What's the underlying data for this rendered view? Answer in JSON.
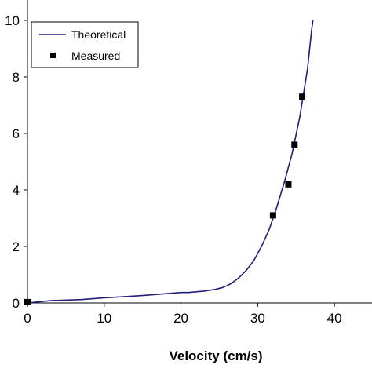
{
  "chart_data": {
    "type": "line",
    "title": "",
    "xlabel": "Velocity (cm/s)",
    "ylabel": "",
    "xlim": [
      0,
      45
    ],
    "ylim": [
      0,
      10
    ],
    "x_ticks": [
      0,
      10,
      20,
      30,
      40
    ],
    "y_ticks": [
      0,
      2,
      4,
      6,
      8,
      10
    ],
    "x_tick_labels": [
      "0",
      "10",
      "20",
      "30",
      "40"
    ],
    "y_tick_labels": [
      "0",
      "2",
      "4",
      "6",
      "8",
      "10"
    ],
    "grid": false,
    "legend_position": "top-left",
    "series": [
      {
        "name": "Theoretical",
        "kind": "line",
        "color": "#1f1f7a",
        "points": [
          [
            0,
            0
          ],
          [
            3,
            0.08
          ],
          [
            7,
            0.12
          ],
          [
            10,
            0.18
          ],
          [
            15,
            0.26
          ],
          [
            20,
            0.37
          ],
          [
            21,
            0.37
          ],
          [
            23,
            0.42
          ],
          [
            24.5,
            0.48
          ],
          [
            25.5,
            0.55
          ],
          [
            26.5,
            0.68
          ],
          [
            27.5,
            0.88
          ],
          [
            28.5,
            1.15
          ],
          [
            29.5,
            1.5
          ],
          [
            30.5,
            2.0
          ],
          [
            31.5,
            2.6
          ],
          [
            32.5,
            3.4
          ],
          [
            33.5,
            4.3
          ],
          [
            34.5,
            5.3
          ],
          [
            35.5,
            6.6
          ],
          [
            36.5,
            8.3
          ],
          [
            37.0,
            9.6
          ],
          [
            37.2,
            10.0
          ]
        ]
      },
      {
        "name": "Measured",
        "kind": "scatter",
        "color": "#000000",
        "points": [
          [
            0,
            0.03
          ],
          [
            32,
            3.1
          ],
          [
            34,
            4.2
          ],
          [
            34.8,
            5.6
          ],
          [
            35.8,
            7.3
          ]
        ]
      }
    ]
  }
}
